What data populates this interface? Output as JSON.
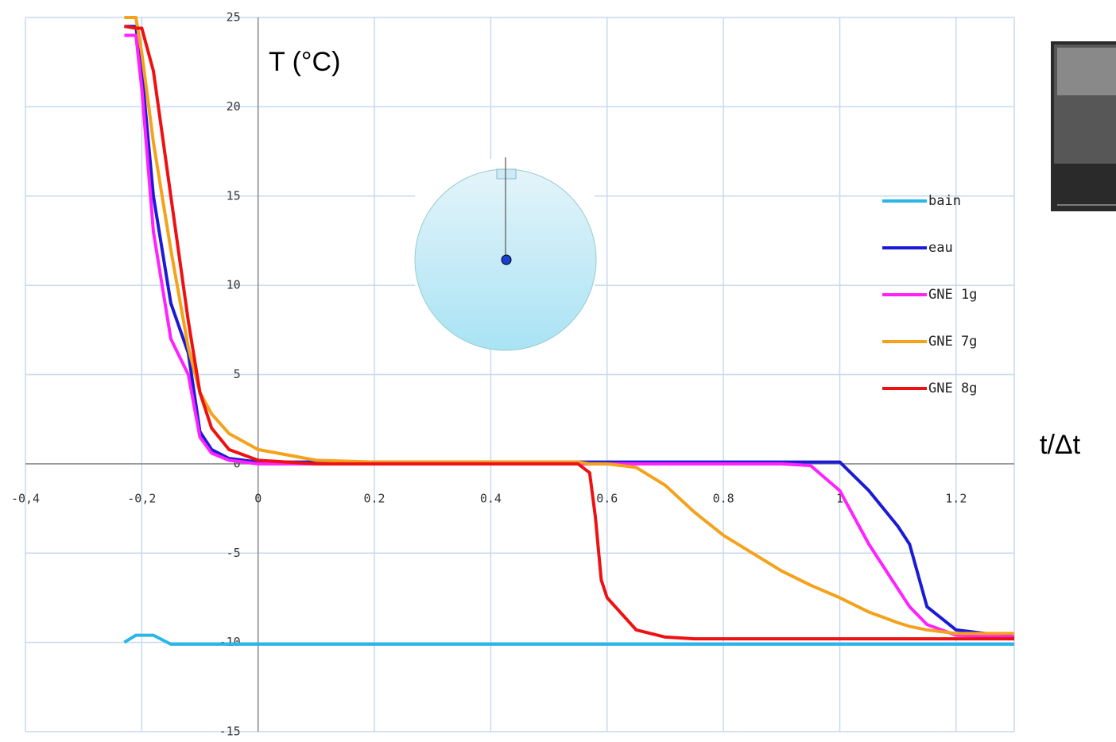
{
  "chart_data": {
    "type": "line",
    "y_label": "T (°C)",
    "x_label": "t/Δt",
    "xlim": [
      -0.4,
      1.3
    ],
    "ylim": [
      -15,
      25
    ],
    "xticks": [
      {
        "value": -0.4,
        "label": "-0,4"
      },
      {
        "value": -0.2,
        "label": "-0,2"
      },
      0,
      0.2,
      0.4,
      0.6,
      0.8,
      1,
      1.2
    ],
    "yticks": [
      -15,
      -10,
      -5,
      0,
      5,
      10,
      15,
      20,
      25
    ],
    "grid": true,
    "legend": "right",
    "x": [
      -0.23,
      -0.21,
      -0.2,
      -0.18,
      -0.15,
      -0.12,
      -0.1,
      -0.08,
      -0.05,
      0,
      0.1,
      0.2,
      0.4,
      0.55,
      0.57,
      0.58,
      0.59,
      0.6,
      0.65,
      0.7,
      0.75,
      0.8,
      0.9,
      0.95,
      1.0,
      1.05,
      1.1,
      1.12,
      1.15,
      1.2,
      1.3
    ],
    "series": [
      {
        "name": "bain",
        "color": "#29b6e8",
        "values": [
          -10,
          -9.6,
          -9.6,
          -9.6,
          -10.1,
          -10.1,
          -10.1,
          -10.1,
          -10.1,
          -10.1,
          -10.1,
          -10.1,
          -10.1,
          -10.1,
          -10.1,
          -10.1,
          -10.1,
          -10.1,
          -10.1,
          -10.1,
          -10.1,
          -10.1,
          -10.1,
          -10.1,
          -10.1,
          -10.1,
          -10.1,
          -10.1,
          -10.1,
          -10.1,
          -10.1
        ]
      },
      {
        "name": "eau",
        "color": "#1b1bd6",
        "values": [
          24.5,
          24.5,
          22,
          15,
          9,
          6.2,
          1.8,
          0.8,
          0.3,
          0.1,
          0.1,
          0.1,
          0.1,
          0.1,
          0.1,
          0.1,
          0.1,
          0.1,
          0.1,
          0.1,
          0.1,
          0.1,
          0.1,
          0.1,
          0.1,
          -1.5,
          -3.5,
          -4.5,
          -8,
          -9.3,
          -9.7
        ]
      },
      {
        "name": "GNE 1g",
        "color": "#ff22ff",
        "values": [
          24,
          24,
          21,
          13,
          7,
          5,
          1.5,
          0.6,
          0.2,
          0,
          0,
          0,
          0,
          0,
          0,
          0,
          0,
          0,
          0,
          0,
          0,
          0,
          0,
          -0.1,
          -1.5,
          -4.5,
          -7,
          -8,
          -9,
          -9.6,
          -9.7
        ]
      },
      {
        "name": "GNE 7g",
        "color": "#f5a21b",
        "values": [
          25,
          25,
          23,
          18,
          12,
          6.5,
          4,
          2.8,
          1.7,
          0.8,
          0.2,
          0.1,
          0.1,
          0.1,
          0,
          0,
          0,
          0,
          -0.2,
          -1.2,
          -2.7,
          -4,
          -6,
          -6.8,
          -7.5,
          -8.3,
          -8.9,
          -9.1,
          -9.3,
          -9.5,
          -9.5
        ]
      },
      {
        "name": "GNE 8g",
        "color": "#ee1111",
        "values": [
          24.5,
          24.4,
          24.4,
          22,
          15,
          8,
          4,
          2,
          0.8,
          0.2,
          0,
          0,
          0,
          0,
          -0.5,
          -3,
          -6.5,
          -7.5,
          -9.3,
          -9.7,
          -9.8,
          -9.8,
          -9.8,
          -9.8,
          -9.8,
          -9.8,
          -9.8,
          -9.8,
          -9.8,
          -9.8,
          -9.8
        ]
      }
    ]
  }
}
